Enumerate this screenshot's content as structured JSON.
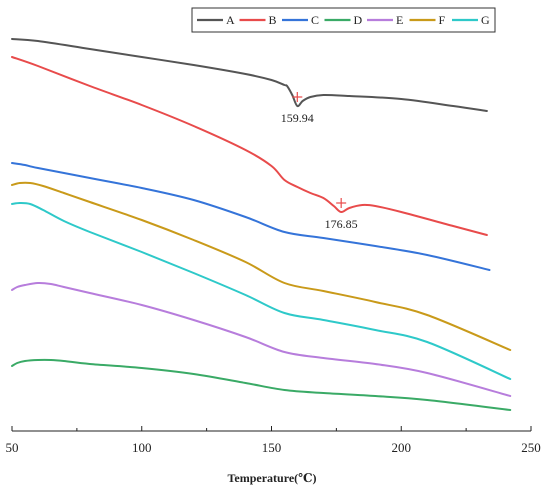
{
  "chart_data": {
    "type": "line",
    "xlabel": "Temperature(℃)",
    "ylabel": "",
    "xlim": [
      50,
      250
    ],
    "x_ticks": [
      50,
      100,
      150,
      200,
      250
    ],
    "y_axis_visible": false,
    "grid": false,
    "legend": "top-right",
    "series": [
      {
        "name": "A",
        "color": "#555555",
        "points": [
          [
            50,
            39
          ],
          [
            60,
            41
          ],
          [
            80,
            49
          ],
          [
            100,
            57
          ],
          [
            120,
            65
          ],
          [
            140,
            74
          ],
          [
            150,
            80
          ],
          [
            155,
            85
          ],
          [
            156,
            86
          ],
          [
            158,
            95
          ],
          [
            159.94,
            106
          ],
          [
            162,
            101
          ],
          [
            165,
            97
          ],
          [
            170,
            95
          ],
          [
            180,
            96
          ],
          [
            200,
            99
          ],
          [
            220,
            106
          ],
          [
            233,
            111
          ]
        ]
      },
      {
        "name": "B",
        "color": "#e84b4b",
        "points": [
          [
            50,
            57
          ],
          [
            60,
            66
          ],
          [
            80,
            86
          ],
          [
            100,
            105
          ],
          [
            120,
            126
          ],
          [
            140,
            150
          ],
          [
            150,
            166
          ],
          [
            155,
            180
          ],
          [
            160,
            187
          ],
          [
            165,
            193
          ],
          [
            170,
            198
          ],
          [
            174,
            206
          ],
          [
            176.85,
            212
          ],
          [
            180,
            208
          ],
          [
            185,
            205
          ],
          [
            190,
            206
          ],
          [
            200,
            212
          ],
          [
            220,
            226
          ],
          [
            233,
            235
          ]
        ]
      },
      {
        "name": "C",
        "color": "#3574d9",
        "points": [
          [
            50,
            163
          ],
          [
            55,
            165
          ],
          [
            60,
            168
          ],
          [
            80,
            178
          ],
          [
            100,
            188
          ],
          [
            120,
            200
          ],
          [
            140,
            217
          ],
          [
            155,
            232
          ],
          [
            170,
            238
          ],
          [
            190,
            246
          ],
          [
            210,
            255
          ],
          [
            234,
            270
          ]
        ]
      },
      {
        "name": "D",
        "color": "#3aaa66",
        "points": [
          [
            50,
            366
          ],
          [
            52,
            363
          ],
          [
            55,
            361
          ],
          [
            60,
            360
          ],
          [
            65,
            360
          ],
          [
            70,
            361
          ],
          [
            80,
            364
          ],
          [
            100,
            368
          ],
          [
            120,
            374
          ],
          [
            140,
            383
          ],
          [
            155,
            390
          ],
          [
            170,
            393
          ],
          [
            190,
            396
          ],
          [
            210,
            400
          ],
          [
            242,
            410
          ]
        ]
      },
      {
        "name": "E",
        "color": "#b77ddc",
        "points": [
          [
            50,
            290
          ],
          [
            52,
            287
          ],
          [
            55,
            285
          ],
          [
            60,
            283
          ],
          [
            65,
            284
          ],
          [
            70,
            287
          ],
          [
            80,
            293
          ],
          [
            100,
            305
          ],
          [
            120,
            320
          ],
          [
            140,
            337
          ],
          [
            155,
            352
          ],
          [
            170,
            358
          ],
          [
            190,
            364
          ],
          [
            210,
            373
          ],
          [
            242,
            396
          ]
        ]
      },
      {
        "name": "F",
        "color": "#c99a1a",
        "points": [
          [
            50,
            185
          ],
          [
            53,
            183
          ],
          [
            57,
            183
          ],
          [
            62,
            186
          ],
          [
            70,
            193
          ],
          [
            80,
            202
          ],
          [
            100,
            220
          ],
          [
            120,
            240
          ],
          [
            140,
            262
          ],
          [
            155,
            283
          ],
          [
            170,
            291
          ],
          [
            190,
            302
          ],
          [
            210,
            315
          ],
          [
            242,
            350
          ]
        ]
      },
      {
        "name": "G",
        "color": "#2ec9c9",
        "points": [
          [
            50,
            204
          ],
          [
            53,
            203
          ],
          [
            57,
            204
          ],
          [
            62,
            210
          ],
          [
            70,
            221
          ],
          [
            80,
            232
          ],
          [
            100,
            252
          ],
          [
            120,
            273
          ],
          [
            140,
            295
          ],
          [
            155,
            313
          ],
          [
            170,
            320
          ],
          [
            190,
            330
          ],
          [
            210,
            342
          ],
          [
            242,
            379
          ]
        ]
      }
    ],
    "annotations": [
      {
        "label": "159.94",
        "series": "A",
        "x": 159.94
      },
      {
        "label": "176.85",
        "series": "B",
        "x": 176.85
      }
    ]
  }
}
